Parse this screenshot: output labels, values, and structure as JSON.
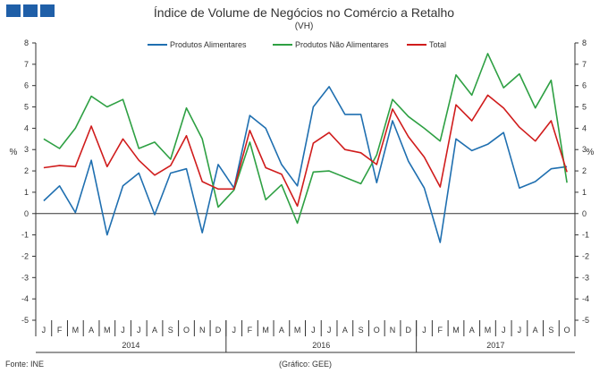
{
  "header": {
    "title": "Índice de Volume de Negócios no Comércio a Retalho",
    "subtitle": "(VH)"
  },
  "footer": {
    "source": "Fonte: INE",
    "credit": "(Gráfico: GEE)"
  },
  "colors": {
    "logo": "#1f5fa8",
    "food": "#1f6fb0",
    "nonfood": "#2ea043",
    "total": "#d01c1c",
    "axis": "#333333"
  },
  "chart_data": {
    "type": "line",
    "title": "Índice de Volume de Negócios no Comércio a Retalho",
    "subtitle": "(VH)",
    "ylabel": "%",
    "ylabel_right": "%",
    "ylim": [
      -5,
      8
    ],
    "yticks": [
      -5,
      -4,
      -3,
      -2,
      -1,
      0,
      1,
      2,
      3,
      4,
      5,
      6,
      7,
      8
    ],
    "grid": false,
    "legend_position": "top",
    "categories": [
      "J",
      "F",
      "M",
      "A",
      "M",
      "J",
      "J",
      "A",
      "S",
      "O",
      "N",
      "D",
      "J",
      "F",
      "M",
      "A",
      "M",
      "J",
      "J",
      "A",
      "S",
      "O",
      "N",
      "D",
      "J",
      "F",
      "M",
      "A",
      "M",
      "J",
      "J",
      "A",
      "S",
      "O"
    ],
    "years": [
      {
        "label": "2014",
        "start": 0,
        "end": 11
      },
      {
        "label": "2016",
        "start": 12,
        "end": 23
      },
      {
        "label": "2017",
        "start": 24,
        "end": 33
      }
    ],
    "series": [
      {
        "name": "Produtos Alimentares",
        "color": "#1f6fb0",
        "values": [
          0.6,
          1.3,
          0.05,
          2.5,
          -1.0,
          1.3,
          1.9,
          -0.05,
          1.9,
          2.1,
          -0.9,
          2.3,
          1.2,
          4.6,
          4.0,
          2.3,
          1.3,
          5.0,
          5.95,
          4.65,
          4.65,
          1.45,
          4.35,
          2.45,
          1.2,
          -1.35,
          3.5,
          2.95,
          3.25,
          3.8,
          1.2,
          1.5,
          2.1,
          2.2
        ]
      },
      {
        "name": "Produtos Não Alimentares",
        "color": "#2ea043",
        "values": [
          3.5,
          3.05,
          4.0,
          5.5,
          5.0,
          5.35,
          3.05,
          3.35,
          2.55,
          4.95,
          3.5,
          0.3,
          1.1,
          3.35,
          0.65,
          1.35,
          -0.45,
          1.95,
          2.0,
          1.7,
          1.4,
          2.75,
          5.35,
          4.55,
          4.0,
          3.4,
          6.5,
          5.55,
          7.5,
          5.9,
          6.55,
          4.95,
          6.25,
          1.45
        ]
      },
      {
        "name": "Total",
        "color": "#d01c1c",
        "values": [
          2.15,
          2.25,
          2.2,
          4.1,
          2.2,
          3.5,
          2.5,
          1.8,
          2.25,
          3.65,
          1.5,
          1.15,
          1.15,
          3.9,
          2.15,
          1.85,
          0.35,
          3.3,
          3.8,
          3.0,
          2.85,
          2.3,
          4.9,
          3.6,
          2.65,
          1.25,
          5.1,
          4.35,
          5.55,
          4.95,
          4.05,
          3.4,
          4.35,
          1.95
        ]
      }
    ]
  }
}
